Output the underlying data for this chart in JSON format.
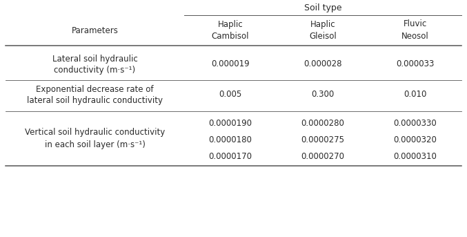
{
  "title": "Soil type",
  "col_headers_line1": [
    "Haplic",
    "Haplic",
    "Fluvic"
  ],
  "col_headers_line2": [
    "Cambisol",
    "Gleisol",
    "Neosol"
  ],
  "row1_label": [
    "Lateral soil hydraulic",
    "conductivity (m·s⁻¹)"
  ],
  "row1_vals": [
    "0.000019",
    "0.000028",
    "0.000033"
  ],
  "row2_label": [
    "Exponential decrease rate of",
    "lateral soil hydraulic conductivity"
  ],
  "row2_vals": [
    "0.005",
    "0.300",
    "0.010"
  ],
  "row3_label": [
    "Vertical soil hydraulic conductivity",
    "in each soil layer (m·s⁻¹)"
  ],
  "row3_vals": [
    [
      "0.0000190",
      "0.0000280",
      "0.0000330"
    ],
    [
      "0.0000180",
      "0.0000275",
      "0.0000320"
    ],
    [
      "0.0000170",
      "0.0000270",
      "0.0000310"
    ]
  ],
  "bg_color": "#ffffff",
  "text_color": "#2a2a2a",
  "line_color": "#555555",
  "font_size": 8.5,
  "bold_header": true
}
